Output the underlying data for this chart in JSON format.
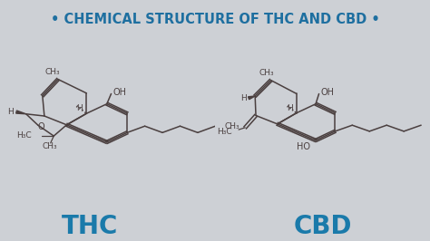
{
  "title": "• CHEMICAL STRUCTURE OF THC AND CBD •",
  "title_color": "#1e6fa0",
  "title_bg_color": "#b8bcc0",
  "main_bg_left": "#cdd0d5",
  "main_bg_right": "#c5c8cd",
  "molecule_color": "#4a3f3f",
  "label_thc": "THC",
  "label_cbd": "CBD",
  "label_color": "#1a7aaa",
  "title_fontsize": 10.5,
  "label_fontsize": 20,
  "fig_width": 4.74,
  "fig_height": 2.66,
  "dpi": 100
}
